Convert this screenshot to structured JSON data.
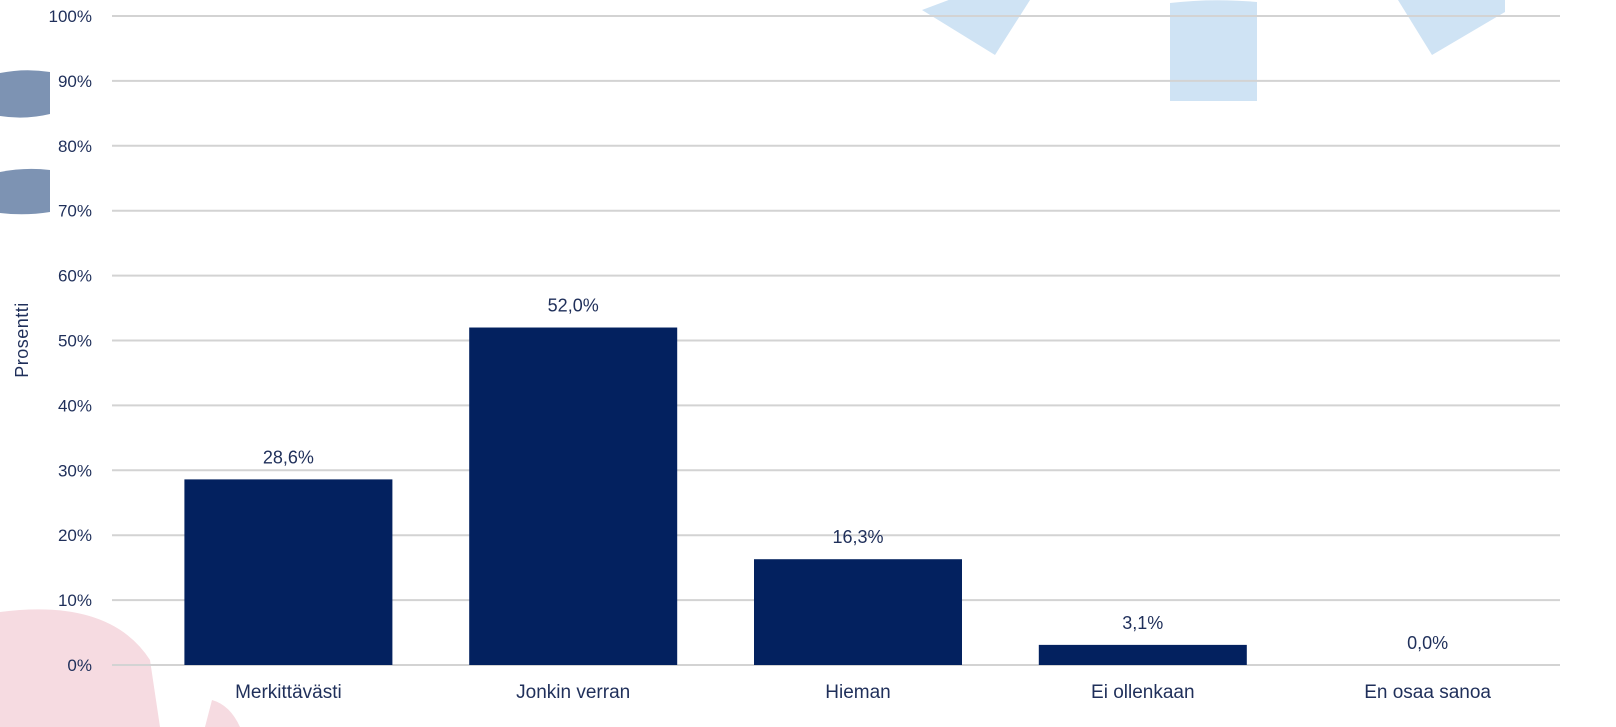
{
  "chart_data": {
    "type": "bar",
    "ylabel": "Prosentti",
    "xlabel": "",
    "ylim": [
      0,
      100
    ],
    "yticks": [
      "0%",
      "10%",
      "20%",
      "30%",
      "40%",
      "50%",
      "60%",
      "70%",
      "80%",
      "90%",
      "100%"
    ],
    "categories": [
      "Merkittävästi",
      "Jonkin verran",
      "Hieman",
      "Ei ollenkaan",
      "En osaa sanoa"
    ],
    "values": [
      28.6,
      52.0,
      16.3,
      3.1,
      0.0
    ],
    "data_labels": [
      "28,6%",
      "52,0%",
      "16,3%",
      "3,1%",
      "0,0%"
    ],
    "grid": true,
    "legend": "none",
    "colors": {
      "bar": "#03215f",
      "grid": "#d3d3d3",
      "text": "#1f2f5a",
      "deco_light_blue": "#cfe3f4",
      "deco_slate": "#7d93b3",
      "deco_pink": "#f6dbe1"
    }
  }
}
